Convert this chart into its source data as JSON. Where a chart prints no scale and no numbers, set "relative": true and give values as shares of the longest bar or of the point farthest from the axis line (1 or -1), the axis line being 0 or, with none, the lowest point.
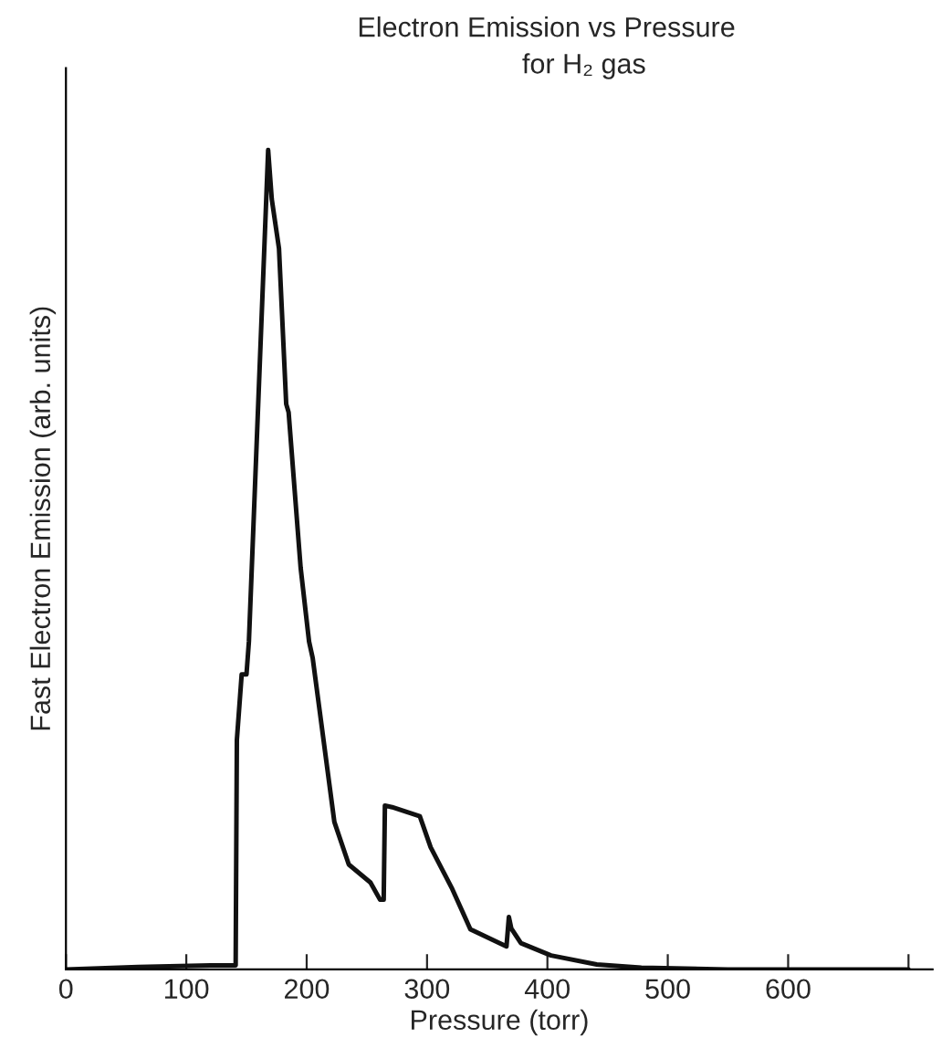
{
  "chart_data": {
    "type": "line",
    "title": "Electron Emission vs Pressure",
    "subtitle": "for H₂ gas",
    "xlabel": "Pressure (torr)",
    "ylabel": "Fast Electron Emission (arb. units)",
    "relative": true,
    "xlim": [
      0,
      720
    ],
    "xticks": [
      0,
      100,
      200,
      300,
      400,
      500,
      600,
      {
        "value": 700,
        "label": null
      }
    ],
    "x": [
      0,
      60,
      120,
      141,
      142,
      143,
      146,
      150,
      152,
      168,
      171,
      177,
      183,
      185,
      195,
      202,
      205,
      223,
      235,
      253,
      261,
      264,
      265,
      271,
      294,
      303,
      321,
      336,
      366,
      368,
      370,
      378,
      403,
      441,
      478,
      550,
      700
    ],
    "series": [
      {
        "color": "#111111",
        "values": [
          0,
          0.003,
          0.005,
          0.005,
          0.28,
          0.3,
          0.36,
          0.36,
          0.4,
          1,
          0.94,
          0.88,
          0.69,
          0.68,
          0.49,
          0.4,
          0.38,
          0.18,
          0.128,
          0.106,
          0.085,
          0.085,
          0.2,
          0.198,
          0.187,
          0.149,
          0.098,
          0.049,
          0.028,
          0.064,
          0.05,
          0.032,
          0.017,
          0.006,
          0.002,
          0,
          0
        ]
      }
    ],
    "grid": false,
    "legend": false,
    "marker": "none",
    "line_style": "solid"
  }
}
